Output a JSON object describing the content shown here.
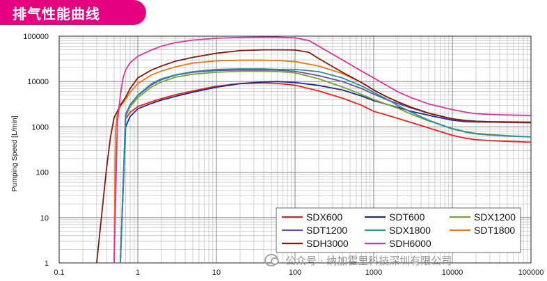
{
  "header": {
    "title": "排气性能曲线",
    "banner_color": "#e5007f"
  },
  "watermark": {
    "text": "公众号 · 纳加霍里科技深圳有限公司"
  },
  "chart_data": {
    "type": "line",
    "xscale": "log",
    "yscale": "log",
    "xlim": [
      0.1,
      100000
    ],
    "ylim": [
      1,
      100000
    ],
    "xticks": [
      0.1,
      1,
      10,
      100,
      1000,
      10000,
      100000
    ],
    "xtick_labels": [
      "0.1",
      "1",
      "10",
      "100",
      "1000",
      "10000",
      "100000"
    ],
    "yticks": [
      1,
      10,
      100,
      1000,
      10000,
      100000
    ],
    "ytick_labels": [
      "1",
      "10",
      "100",
      "1000",
      "10000",
      "100000"
    ],
    "xlabel": "",
    "ylabel": "Pumping Speed [L/min]",
    "grid": true,
    "legend_position": "bottom-right",
    "series": [
      {
        "name": "SDX600",
        "color": "#e8211d",
        "x": [
          0.6,
          0.7,
          0.8,
          1,
          1.5,
          2,
          3,
          5,
          10,
          20,
          40,
          60,
          100,
          200,
          400,
          700,
          1000,
          1500,
          2000,
          3000,
          5000,
          10000,
          15000,
          20000,
          30000,
          50000,
          100000
        ],
        "y": [
          1,
          1500,
          2100,
          2800,
          3600,
          4200,
          5100,
          6200,
          7900,
          9000,
          9300,
          9100,
          8300,
          6200,
          4300,
          3000,
          2200,
          1800,
          1550,
          1250,
          950,
          650,
          560,
          520,
          500,
          480,
          460
        ]
      },
      {
        "name": "SDT600",
        "color": "#1c2b8f",
        "x": [
          0.6,
          0.7,
          0.8,
          1,
          1.5,
          2,
          3,
          5,
          10,
          20,
          40,
          60,
          100,
          200,
          400,
          700,
          1000,
          1500,
          2000,
          3000,
          5000,
          10000,
          15000,
          20000,
          30000,
          50000,
          100000
        ],
        "y": [
          1,
          1000,
          1700,
          2500,
          3300,
          3900,
          4700,
          5800,
          7500,
          9000,
          9800,
          10000,
          9500,
          8200,
          6500,
          4800,
          3800,
          3100,
          2700,
          2200,
          1800,
          1400,
          1300,
          1280,
          1270,
          1260,
          1250
        ]
      },
      {
        "name": "SDX1200",
        "color": "#7aa132",
        "x": [
          0.6,
          0.7,
          0.8,
          1,
          1.5,
          2,
          3,
          5,
          10,
          20,
          40,
          60,
          100,
          200,
          400,
          700,
          1000,
          1500,
          2000,
          3000,
          5000,
          10000,
          15000,
          20000,
          30000,
          50000,
          100000
        ],
        "y": [
          1,
          1700,
          2800,
          4400,
          7600,
          9800,
          12500,
          14500,
          16000,
          16800,
          16800,
          16600,
          15500,
          11500,
          7600,
          5200,
          4000,
          3100,
          2600,
          1900,
          1350,
          920,
          780,
          720,
          680,
          640,
          600
        ]
      },
      {
        "name": "SDT1200",
        "color": "#6a4b9b",
        "x": [
          0.6,
          0.7,
          0.8,
          1,
          1.5,
          2,
          3,
          5,
          10,
          20,
          40,
          60,
          100,
          200,
          400,
          700,
          1000,
          1500,
          2000,
          3000,
          5000,
          10000,
          15000,
          20000,
          30000,
          50000,
          100000
        ],
        "y": [
          1,
          1900,
          3100,
          4900,
          8500,
          11000,
          13800,
          16000,
          17500,
          18000,
          18000,
          17800,
          16800,
          13500,
          10000,
          7000,
          5300,
          3900,
          3300,
          2600,
          2000,
          1500,
          1350,
          1300,
          1280,
          1250,
          1230
        ]
      },
      {
        "name": "SDX1800",
        "color": "#2a8ea4",
        "x": [
          0.6,
          0.7,
          0.8,
          1,
          1.5,
          2,
          3,
          5,
          10,
          20,
          40,
          60,
          100,
          200,
          400,
          700,
          1000,
          1500,
          2000,
          3000,
          5000,
          10000,
          15000,
          20000,
          30000,
          50000,
          100000
        ],
        "y": [
          1,
          1800,
          3000,
          5000,
          9000,
          11500,
          14000,
          16500,
          18500,
          19000,
          19000,
          18500,
          18500,
          16500,
          12000,
          8000,
          5800,
          4000,
          3000,
          2100,
          1400,
          900,
          760,
          700,
          660,
          630,
          600
        ]
      },
      {
        "name": "SDT1800",
        "color": "#e87817",
        "x": [
          0.5,
          0.52,
          0.55,
          0.6,
          0.7,
          0.8,
          1,
          1.5,
          2,
          3,
          5,
          10,
          20,
          40,
          60,
          100,
          200,
          400,
          700,
          1000,
          1500,
          2000,
          3000,
          5000,
          10000,
          15000,
          20000,
          30000,
          50000,
          100000
        ],
        "y": [
          1,
          800,
          2000,
          2800,
          4000,
          5800,
          9000,
          14000,
          17000,
          21000,
          25500,
          28500,
          29500,
          29500,
          29000,
          27500,
          22000,
          15000,
          9500,
          6500,
          4500,
          3600,
          2700,
          2000,
          1500,
          1380,
          1330,
          1300,
          1290,
          1280
        ]
      },
      {
        "name": "SDH3000",
        "color": "#7b1a12",
        "x": [
          0.3,
          0.4,
          0.45,
          0.5,
          0.55,
          0.6,
          0.7,
          0.8,
          1,
          1.5,
          2,
          3,
          5,
          10,
          20,
          40,
          60,
          100,
          150,
          200,
          400,
          700,
          1000,
          1500,
          2000,
          3000,
          5000,
          10000,
          15000,
          20000,
          30000,
          50000,
          100000
        ],
        "y": [
          1,
          120,
          600,
          1600,
          2200,
          3000,
          4500,
          7000,
          12000,
          18000,
          22000,
          28000,
          34000,
          42000,
          48000,
          50000,
          50000,
          49500,
          44000,
          32000,
          16000,
          9500,
          6500,
          4500,
          3600,
          2700,
          2000,
          1500,
          1380,
          1330,
          1300,
          1280,
          1260
        ]
      },
      {
        "name": "SDH6000",
        "color": "#d6369a",
        "x": [
          0.5,
          0.55,
          0.6,
          0.65,
          0.7,
          0.8,
          1,
          1.5,
          2,
          3,
          5,
          10,
          20,
          40,
          60,
          100,
          150,
          200,
          400,
          700,
          1000,
          1500,
          2000,
          3000,
          5000,
          10000,
          15000,
          20000,
          30000,
          50000,
          100000
        ],
        "y": [
          1,
          1200,
          5000,
          12000,
          18000,
          26000,
          36000,
          50000,
          60000,
          72000,
          82000,
          90000,
          94000,
          95000,
          95000,
          92000,
          80000,
          60000,
          30000,
          17000,
          12000,
          8000,
          6000,
          4400,
          3200,
          2400,
          2100,
          1950,
          1880,
          1830,
          1780
        ]
      }
    ]
  }
}
